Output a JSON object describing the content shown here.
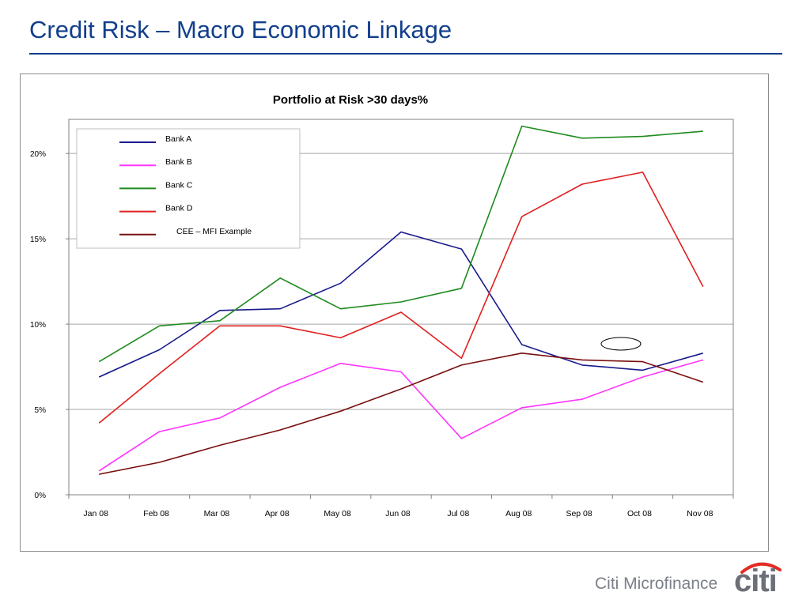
{
  "slide": {
    "title": "Credit Risk – Macro Economic Linkage"
  },
  "chart_data": {
    "type": "line",
    "title": "Portfolio at Risk >30 days%",
    "xlabel": "",
    "ylabel": "",
    "categories": [
      "Jan 08",
      "Feb 08",
      "Mar 08",
      "Apr 08",
      "May 08",
      "Jun 08",
      "Jul 08",
      "Aug 08",
      "Sep 08",
      "Oct 08",
      "Nov 08"
    ],
    "ylim": [
      0,
      22
    ],
    "yticks": [
      0,
      5,
      10,
      15,
      20
    ],
    "ytick_labels": [
      "0%",
      "5%",
      "10%",
      "15%",
      "20%"
    ],
    "grid": "horizontal",
    "legend_position": "top-left",
    "series": [
      {
        "name": "Bank A",
        "color": "#1a1a8c",
        "values": [
          6.9,
          8.5,
          10.8,
          10.9,
          12.4,
          15.4,
          14.4,
          8.8,
          7.6,
          7.3,
          8.3
        ]
      },
      {
        "name": "Bank B",
        "color": "#ff33ff",
        "values": [
          1.4,
          3.7,
          4.5,
          6.3,
          7.7,
          7.2,
          3.3,
          5.1,
          5.6,
          6.9,
          7.9
        ]
      },
      {
        "name": "Bank C",
        "color": "#1f8a1f",
        "values": [
          7.8,
          9.9,
          10.2,
          12.7,
          10.9,
          11.3,
          12.1,
          21.6,
          20.9,
          21.0,
          21.3
        ]
      },
      {
        "name": "Bank D",
        "color": "#e01f1f",
        "values": [
          4.2,
          7.1,
          9.9,
          9.9,
          9.2,
          10.7,
          8.0,
          16.3,
          18.2,
          18.9,
          12.2
        ]
      },
      {
        "name": "CEE – MFI Example",
        "color": "#7a0f0f",
        "values": [
          1.2,
          1.9,
          2.9,
          3.8,
          4.9,
          6.2,
          7.6,
          8.3,
          7.9,
          7.8,
          6.6
        ]
      }
    ]
  },
  "brand": {
    "text": "Citi Microfinance",
    "logo_text": "citi",
    "logo_arc_color": "#e32b25",
    "logo_text_color": "#6b6f77"
  }
}
